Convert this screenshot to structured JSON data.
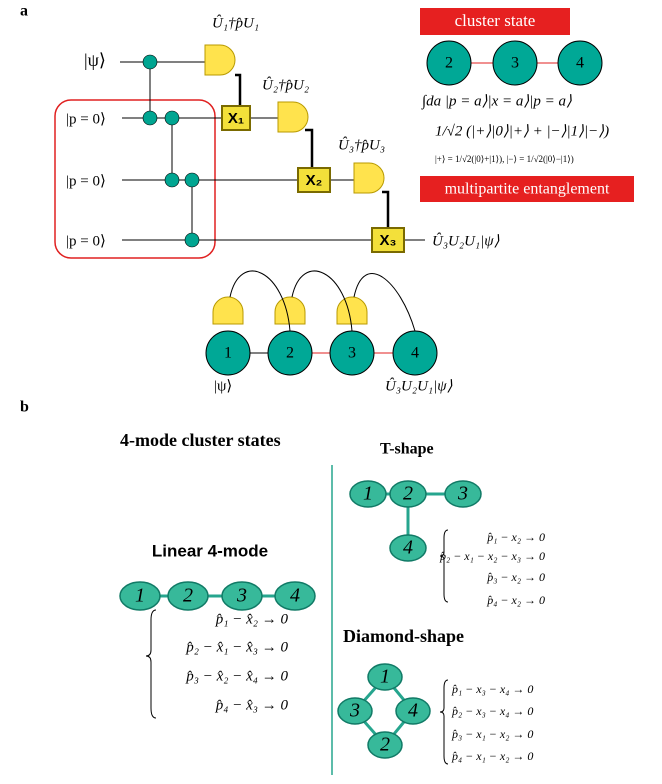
{
  "panel_a": {
    "label": "a",
    "inputs": [
      "|ψ⟩",
      "|p = 0⟩",
      "|p = 0⟩",
      "|p = 0⟩"
    ],
    "detector_labels": [
      "Û₁†p̂U₁",
      "Û₂†p̂U₂",
      "Û₃†p̂U₃"
    ],
    "x_boxes": [
      "X₁",
      "X₂",
      "X₃"
    ],
    "output": "Û₃U₂U₁|ψ⟩",
    "cluster_state": {
      "title": "cluster state",
      "nodes": [
        "2",
        "3",
        "4"
      ],
      "equations": [
        "∫da |p = a⟩|x = a⟩|p = a⟩",
        "1/√2 (|+⟩|0⟩|+⟩ + |−⟩|1⟩|−⟩)",
        "|+⟩ = 1/√2(|0⟩+|1⟩), |−⟩ = 1/√2(|0⟩−|1⟩)"
      ],
      "caption": "multipartite entanglement"
    },
    "chain": {
      "nodes": [
        "1",
        "2",
        "3",
        "4"
      ],
      "input_label": "|ψ⟩",
      "output_label": "Û₃U₂U₁|ψ⟩"
    }
  },
  "panel_b": {
    "label": "b",
    "title": "4-mode cluster states",
    "linear": {
      "title": "Linear 4-mode",
      "nodes": [
        "1",
        "2",
        "3",
        "4"
      ],
      "equations": [
        "p̂₁ − x̂₂ → 0",
        "p̂₂ − x̂₁ − x̂₃ → 0",
        "p̂₃ − x̂₂ − x̂₄ → 0",
        "p̂₄ − x̂₃ → 0"
      ]
    },
    "t_shape": {
      "title": "T-shape",
      "nodes": [
        "1",
        "2",
        "3",
        "4"
      ],
      "equations": [
        "p̂₁ − x₂ → 0",
        "p̂₂ − x₁ − x₂ − x₃ → 0",
        "p̂₃ − x₂ → 0",
        "p̂₄ − x₂ → 0"
      ]
    },
    "diamond": {
      "title": "Diamond-shape",
      "nodes": [
        "1",
        "2",
        "3",
        "4"
      ],
      "equations": [
        "p̂₁ − x₃ − x₄ → 0",
        "p̂₂ − x₃ − x₄ → 0",
        "p̂₃ − x₁ − x₂ → 0",
        "p̂₄ − x₁ − x₂ → 0"
      ]
    }
  }
}
